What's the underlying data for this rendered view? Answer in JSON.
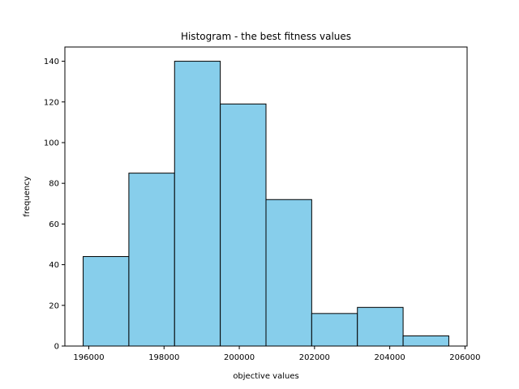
{
  "chart_data": {
    "type": "bar",
    "title": "Histogram - the best fitness values",
    "xlabel": "objective values",
    "ylabel": "frequency",
    "bin_edges": [
      195850,
      197065,
      198280,
      199495,
      200710,
      201925,
      203140,
      204355,
      205570
    ],
    "values": [
      44,
      85,
      140,
      119,
      72,
      16,
      19,
      5
    ],
    "xlim": [
      195364,
      206056
    ],
    "ylim": [
      0,
      147
    ],
    "xticks": [
      196000,
      198000,
      200000,
      202000,
      204000,
      206000
    ],
    "xtick_labels": [
      "196000",
      "198000",
      "200000",
      "202000",
      "204000",
      "206000"
    ],
    "yticks": [
      0,
      20,
      40,
      60,
      80,
      100,
      120,
      140
    ],
    "ytick_labels": [
      "0",
      "20",
      "40",
      "60",
      "80",
      "100",
      "120",
      "140"
    ],
    "bar_color": "#87ceeb",
    "edge_color": "#000000",
    "grid": false,
    "legend": "none"
  }
}
